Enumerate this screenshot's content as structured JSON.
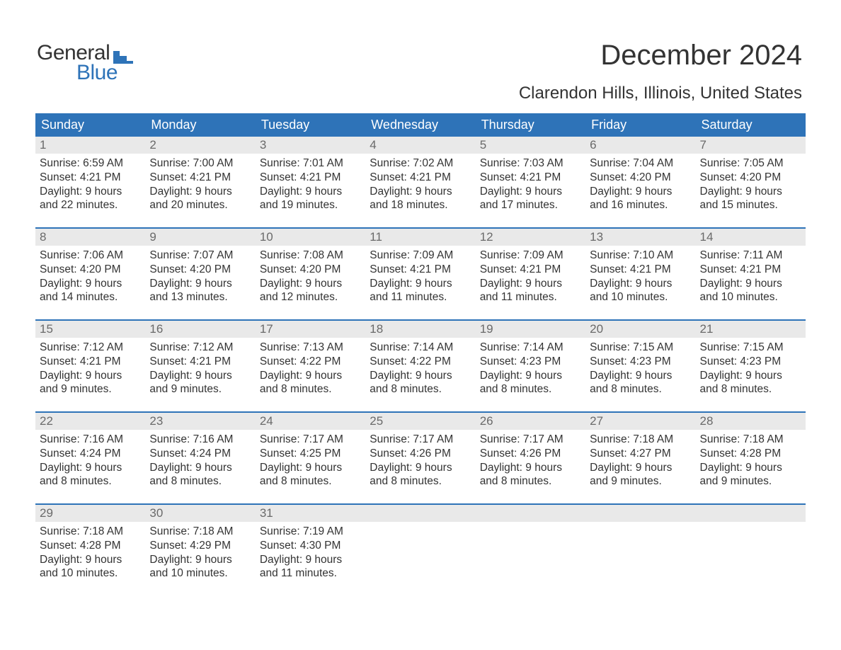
{
  "logo": {
    "text1": "General",
    "text2": "Blue",
    "icon_color": "#2e73b8"
  },
  "title": "December 2024",
  "subtitle": "Clarendon Hills, Illinois, United States",
  "colors": {
    "header_bg": "#2e73b8",
    "header_text": "#ffffff",
    "daynum_bg": "#e9e9e9",
    "daynum_text": "#6a6a6a",
    "body_text": "#333333",
    "week_border": "#2e73b8"
  },
  "day_headers": [
    "Sunday",
    "Monday",
    "Tuesday",
    "Wednesday",
    "Thursday",
    "Friday",
    "Saturday"
  ],
  "weeks": [
    [
      {
        "n": "1",
        "sunrise": "6:59 AM",
        "sunset": "4:21 PM",
        "dl1": "9 hours",
        "dl2": "and 22 minutes."
      },
      {
        "n": "2",
        "sunrise": "7:00 AM",
        "sunset": "4:21 PM",
        "dl1": "9 hours",
        "dl2": "and 20 minutes."
      },
      {
        "n": "3",
        "sunrise": "7:01 AM",
        "sunset": "4:21 PM",
        "dl1": "9 hours",
        "dl2": "and 19 minutes."
      },
      {
        "n": "4",
        "sunrise": "7:02 AM",
        "sunset": "4:21 PM",
        "dl1": "9 hours",
        "dl2": "and 18 minutes."
      },
      {
        "n": "5",
        "sunrise": "7:03 AM",
        "sunset": "4:21 PM",
        "dl1": "9 hours",
        "dl2": "and 17 minutes."
      },
      {
        "n": "6",
        "sunrise": "7:04 AM",
        "sunset": "4:20 PM",
        "dl1": "9 hours",
        "dl2": "and 16 minutes."
      },
      {
        "n": "7",
        "sunrise": "7:05 AM",
        "sunset": "4:20 PM",
        "dl1": "9 hours",
        "dl2": "and 15 minutes."
      }
    ],
    [
      {
        "n": "8",
        "sunrise": "7:06 AM",
        "sunset": "4:20 PM",
        "dl1": "9 hours",
        "dl2": "and 14 minutes."
      },
      {
        "n": "9",
        "sunrise": "7:07 AM",
        "sunset": "4:20 PM",
        "dl1": "9 hours",
        "dl2": "and 13 minutes."
      },
      {
        "n": "10",
        "sunrise": "7:08 AM",
        "sunset": "4:20 PM",
        "dl1": "9 hours",
        "dl2": "and 12 minutes."
      },
      {
        "n": "11",
        "sunrise": "7:09 AM",
        "sunset": "4:21 PM",
        "dl1": "9 hours",
        "dl2": "and 11 minutes."
      },
      {
        "n": "12",
        "sunrise": "7:09 AM",
        "sunset": "4:21 PM",
        "dl1": "9 hours",
        "dl2": "and 11 minutes."
      },
      {
        "n": "13",
        "sunrise": "7:10 AM",
        "sunset": "4:21 PM",
        "dl1": "9 hours",
        "dl2": "and 10 minutes."
      },
      {
        "n": "14",
        "sunrise": "7:11 AM",
        "sunset": "4:21 PM",
        "dl1": "9 hours",
        "dl2": "and 10 minutes."
      }
    ],
    [
      {
        "n": "15",
        "sunrise": "7:12 AM",
        "sunset": "4:21 PM",
        "dl1": "9 hours",
        "dl2": "and 9 minutes."
      },
      {
        "n": "16",
        "sunrise": "7:12 AM",
        "sunset": "4:21 PM",
        "dl1": "9 hours",
        "dl2": "and 9 minutes."
      },
      {
        "n": "17",
        "sunrise": "7:13 AM",
        "sunset": "4:22 PM",
        "dl1": "9 hours",
        "dl2": "and 8 minutes."
      },
      {
        "n": "18",
        "sunrise": "7:14 AM",
        "sunset": "4:22 PM",
        "dl1": "9 hours",
        "dl2": "and 8 minutes."
      },
      {
        "n": "19",
        "sunrise": "7:14 AM",
        "sunset": "4:23 PM",
        "dl1": "9 hours",
        "dl2": "and 8 minutes."
      },
      {
        "n": "20",
        "sunrise": "7:15 AM",
        "sunset": "4:23 PM",
        "dl1": "9 hours",
        "dl2": "and 8 minutes."
      },
      {
        "n": "21",
        "sunrise": "7:15 AM",
        "sunset": "4:23 PM",
        "dl1": "9 hours",
        "dl2": "and 8 minutes."
      }
    ],
    [
      {
        "n": "22",
        "sunrise": "7:16 AM",
        "sunset": "4:24 PM",
        "dl1": "9 hours",
        "dl2": "and 8 minutes."
      },
      {
        "n": "23",
        "sunrise": "7:16 AM",
        "sunset": "4:24 PM",
        "dl1": "9 hours",
        "dl2": "and 8 minutes."
      },
      {
        "n": "24",
        "sunrise": "7:17 AM",
        "sunset": "4:25 PM",
        "dl1": "9 hours",
        "dl2": "and 8 minutes."
      },
      {
        "n": "25",
        "sunrise": "7:17 AM",
        "sunset": "4:26 PM",
        "dl1": "9 hours",
        "dl2": "and 8 minutes."
      },
      {
        "n": "26",
        "sunrise": "7:17 AM",
        "sunset": "4:26 PM",
        "dl1": "9 hours",
        "dl2": "and 8 minutes."
      },
      {
        "n": "27",
        "sunrise": "7:18 AM",
        "sunset": "4:27 PM",
        "dl1": "9 hours",
        "dl2": "and 9 minutes."
      },
      {
        "n": "28",
        "sunrise": "7:18 AM",
        "sunset": "4:28 PM",
        "dl1": "9 hours",
        "dl2": "and 9 minutes."
      }
    ],
    [
      {
        "n": "29",
        "sunrise": "7:18 AM",
        "sunset": "4:28 PM",
        "dl1": "9 hours",
        "dl2": "and 10 minutes."
      },
      {
        "n": "30",
        "sunrise": "7:18 AM",
        "sunset": "4:29 PM",
        "dl1": "9 hours",
        "dl2": "and 10 minutes."
      },
      {
        "n": "31",
        "sunrise": "7:19 AM",
        "sunset": "4:30 PM",
        "dl1": "9 hours",
        "dl2": "and 11 minutes."
      },
      {
        "empty": true
      },
      {
        "empty": true
      },
      {
        "empty": true
      },
      {
        "empty": true
      }
    ]
  ],
  "labels": {
    "sunrise": "Sunrise: ",
    "sunset": "Sunset: ",
    "daylight": "Daylight: "
  }
}
